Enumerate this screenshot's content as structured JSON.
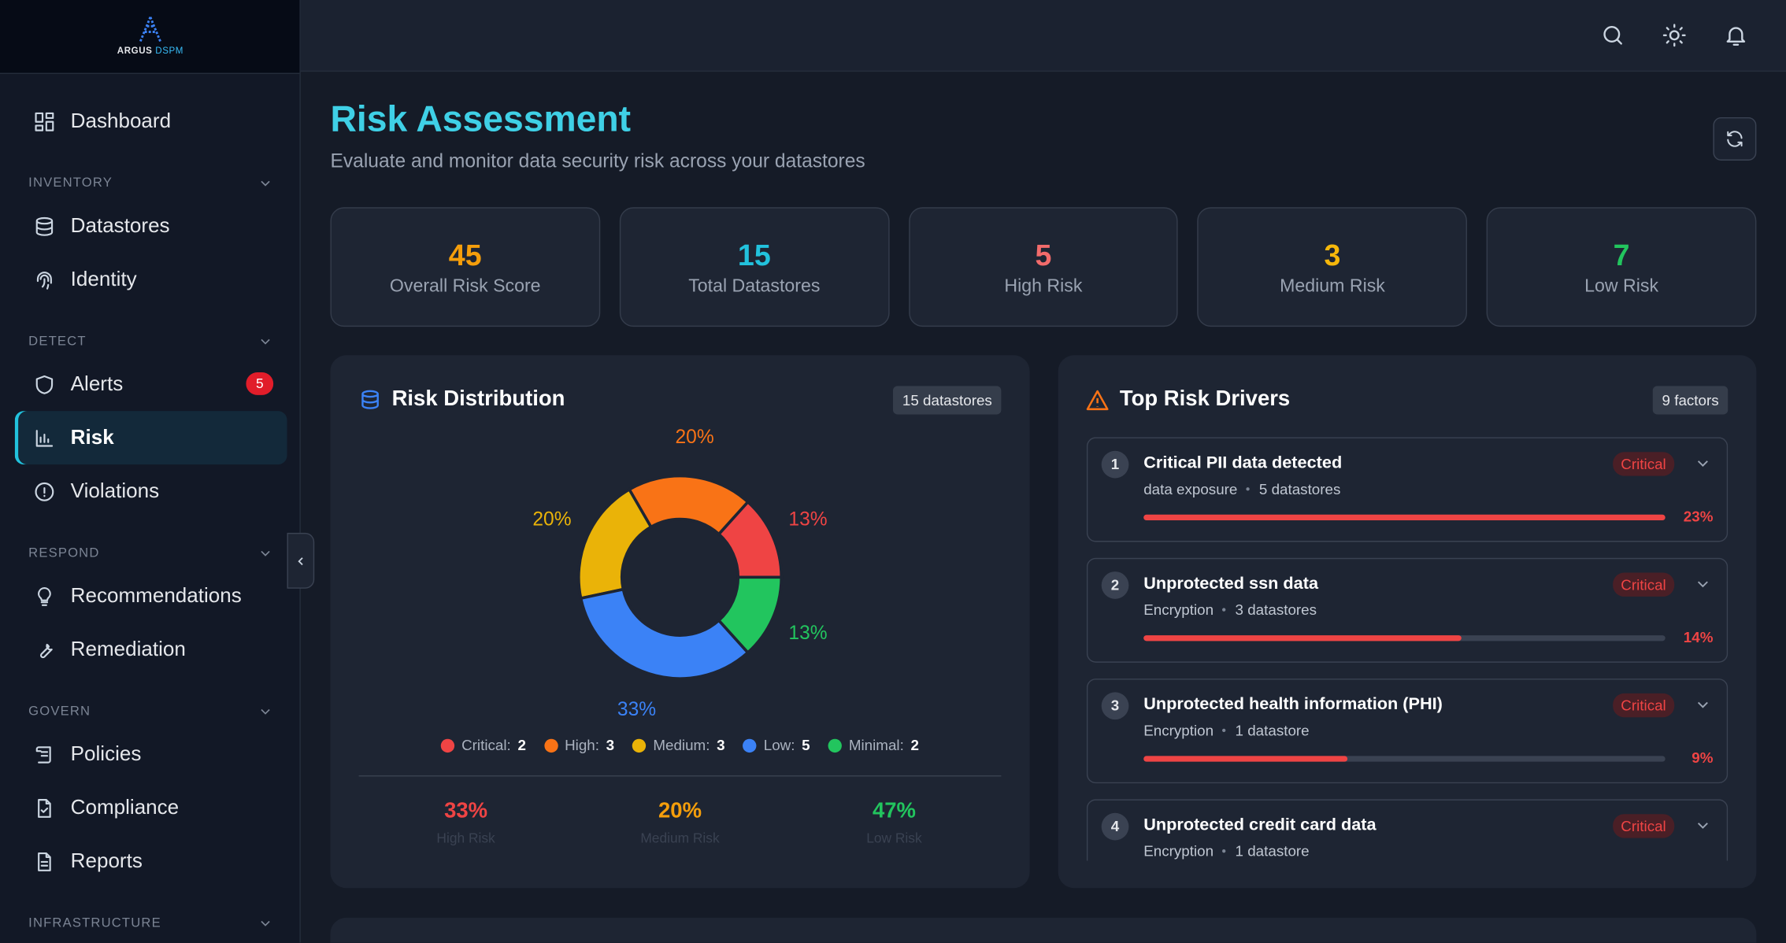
{
  "brand": {
    "name": "ARGUS",
    "product": "DSPM"
  },
  "sidebar": {
    "dashboard": {
      "label": "Dashboard"
    },
    "sections": [
      {
        "title": "INVENTORY",
        "items": [
          {
            "label": "Datastores"
          },
          {
            "label": "Identity"
          }
        ]
      },
      {
        "title": "DETECT",
        "items": [
          {
            "label": "Alerts",
            "badge": 5
          },
          {
            "label": "Risk",
            "active": true
          },
          {
            "label": "Violations"
          }
        ]
      },
      {
        "title": "RESPOND",
        "items": [
          {
            "label": "Recommendations"
          },
          {
            "label": "Remediation"
          }
        ]
      },
      {
        "title": "GOVERN",
        "items": [
          {
            "label": "Policies"
          },
          {
            "label": "Compliance"
          },
          {
            "label": "Reports"
          }
        ]
      },
      {
        "title": "INFRASTRUCTURE",
        "items": []
      }
    ]
  },
  "header": {
    "title": "Risk Assessment",
    "subtitle": "Evaluate and monitor data security risk across your datastores"
  },
  "stats": [
    {
      "value": 45,
      "label": "Overall Risk Score",
      "color": "#f59e0b"
    },
    {
      "value": 15,
      "label": "Total Datastores",
      "color": "#22c2dd"
    },
    {
      "value": 5,
      "label": "High Risk",
      "color": "#f26b6b"
    },
    {
      "value": 3,
      "label": "Medium Risk",
      "color": "#f5b70b"
    },
    {
      "value": 7,
      "label": "Low Risk",
      "color": "#22c55e"
    }
  ],
  "risk_distribution": {
    "title": "Risk Distribution",
    "badge": "15 datastores",
    "segments": [
      {
        "label": "Critical:",
        "count": 2,
        "percent_label": "13%",
        "color": "#ef4444"
      },
      {
        "label": "High:",
        "count": 3,
        "percent_label": "20%",
        "color": "#f97316"
      },
      {
        "label": "Medium:",
        "count": 3,
        "percent_label": "20%",
        "color": "#eab308"
      },
      {
        "label": "Low:",
        "count": 5,
        "percent_label": "33%",
        "color": "#3b82f6"
      },
      {
        "label": "Minimal:",
        "count": 2,
        "percent_label": "13%",
        "color": "#22c55e"
      }
    ],
    "summary": [
      {
        "value": "33%",
        "label": "High Risk",
        "color": "#ef4444"
      },
      {
        "value": "20%",
        "label": "Medium Risk",
        "color": "#f59e0b"
      },
      {
        "value": "47%",
        "label": "Low Risk",
        "color": "#22c55e"
      }
    ]
  },
  "top_risk_drivers": {
    "title": "Top Risk Drivers",
    "badge": "9 factors",
    "items": [
      {
        "rank": 1,
        "title": "Critical PII data detected",
        "severity": "Critical",
        "category": "data exposure",
        "datastores": "5 datastores",
        "share": 23,
        "share_label": "23%"
      },
      {
        "rank": 2,
        "title": "Unprotected ssn data",
        "severity": "Critical",
        "category": "Encryption",
        "datastores": "3 datastores",
        "share": 14,
        "share_label": "14%"
      },
      {
        "rank": 3,
        "title": "Unprotected health information (PHI)",
        "severity": "Critical",
        "category": "Encryption",
        "datastores": "1 datastore",
        "share": 9,
        "share_label": "9%"
      },
      {
        "rank": 4,
        "title": "Unprotected credit card data",
        "severity": "Critical",
        "category": "Encryption",
        "datastores": "1 datastore"
      }
    ]
  }
}
